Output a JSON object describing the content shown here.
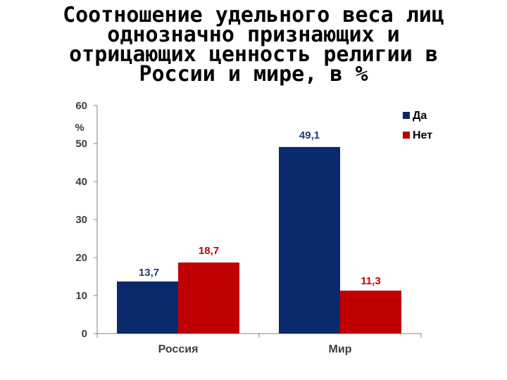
{
  "chart_data": {
    "type": "bar",
    "title_lines": [
      "Соотношение удельного веса лиц",
      "однозначно признающих и",
      "отрицающих ценность религии в",
      "России и мире, в %"
    ],
    "ylabel": "%",
    "xlabel": "",
    "categories": [
      "Россия",
      "Мир"
    ],
    "series": [
      {
        "name": "Да",
        "values": [
          13.7,
          49.1
        ],
        "labels": [
          "13,7",
          "49,1"
        ],
        "color": "#0b2a6e",
        "label_color": "#1f3a7a"
      },
      {
        "name": "Нет",
        "values": [
          18.7,
          11.3
        ],
        "labels": [
          "18,7",
          "11,3"
        ],
        "color": "#c00000",
        "label_color": "#c00000"
      }
    ],
    "ylim": [
      0,
      60
    ],
    "yticks": [
      0,
      10,
      20,
      30,
      40,
      50,
      60
    ],
    "ytick_labels": [
      "0",
      "10",
      "20",
      "30",
      "40",
      "50",
      "60"
    ],
    "grid": false,
    "legend_position": "top-right"
  }
}
